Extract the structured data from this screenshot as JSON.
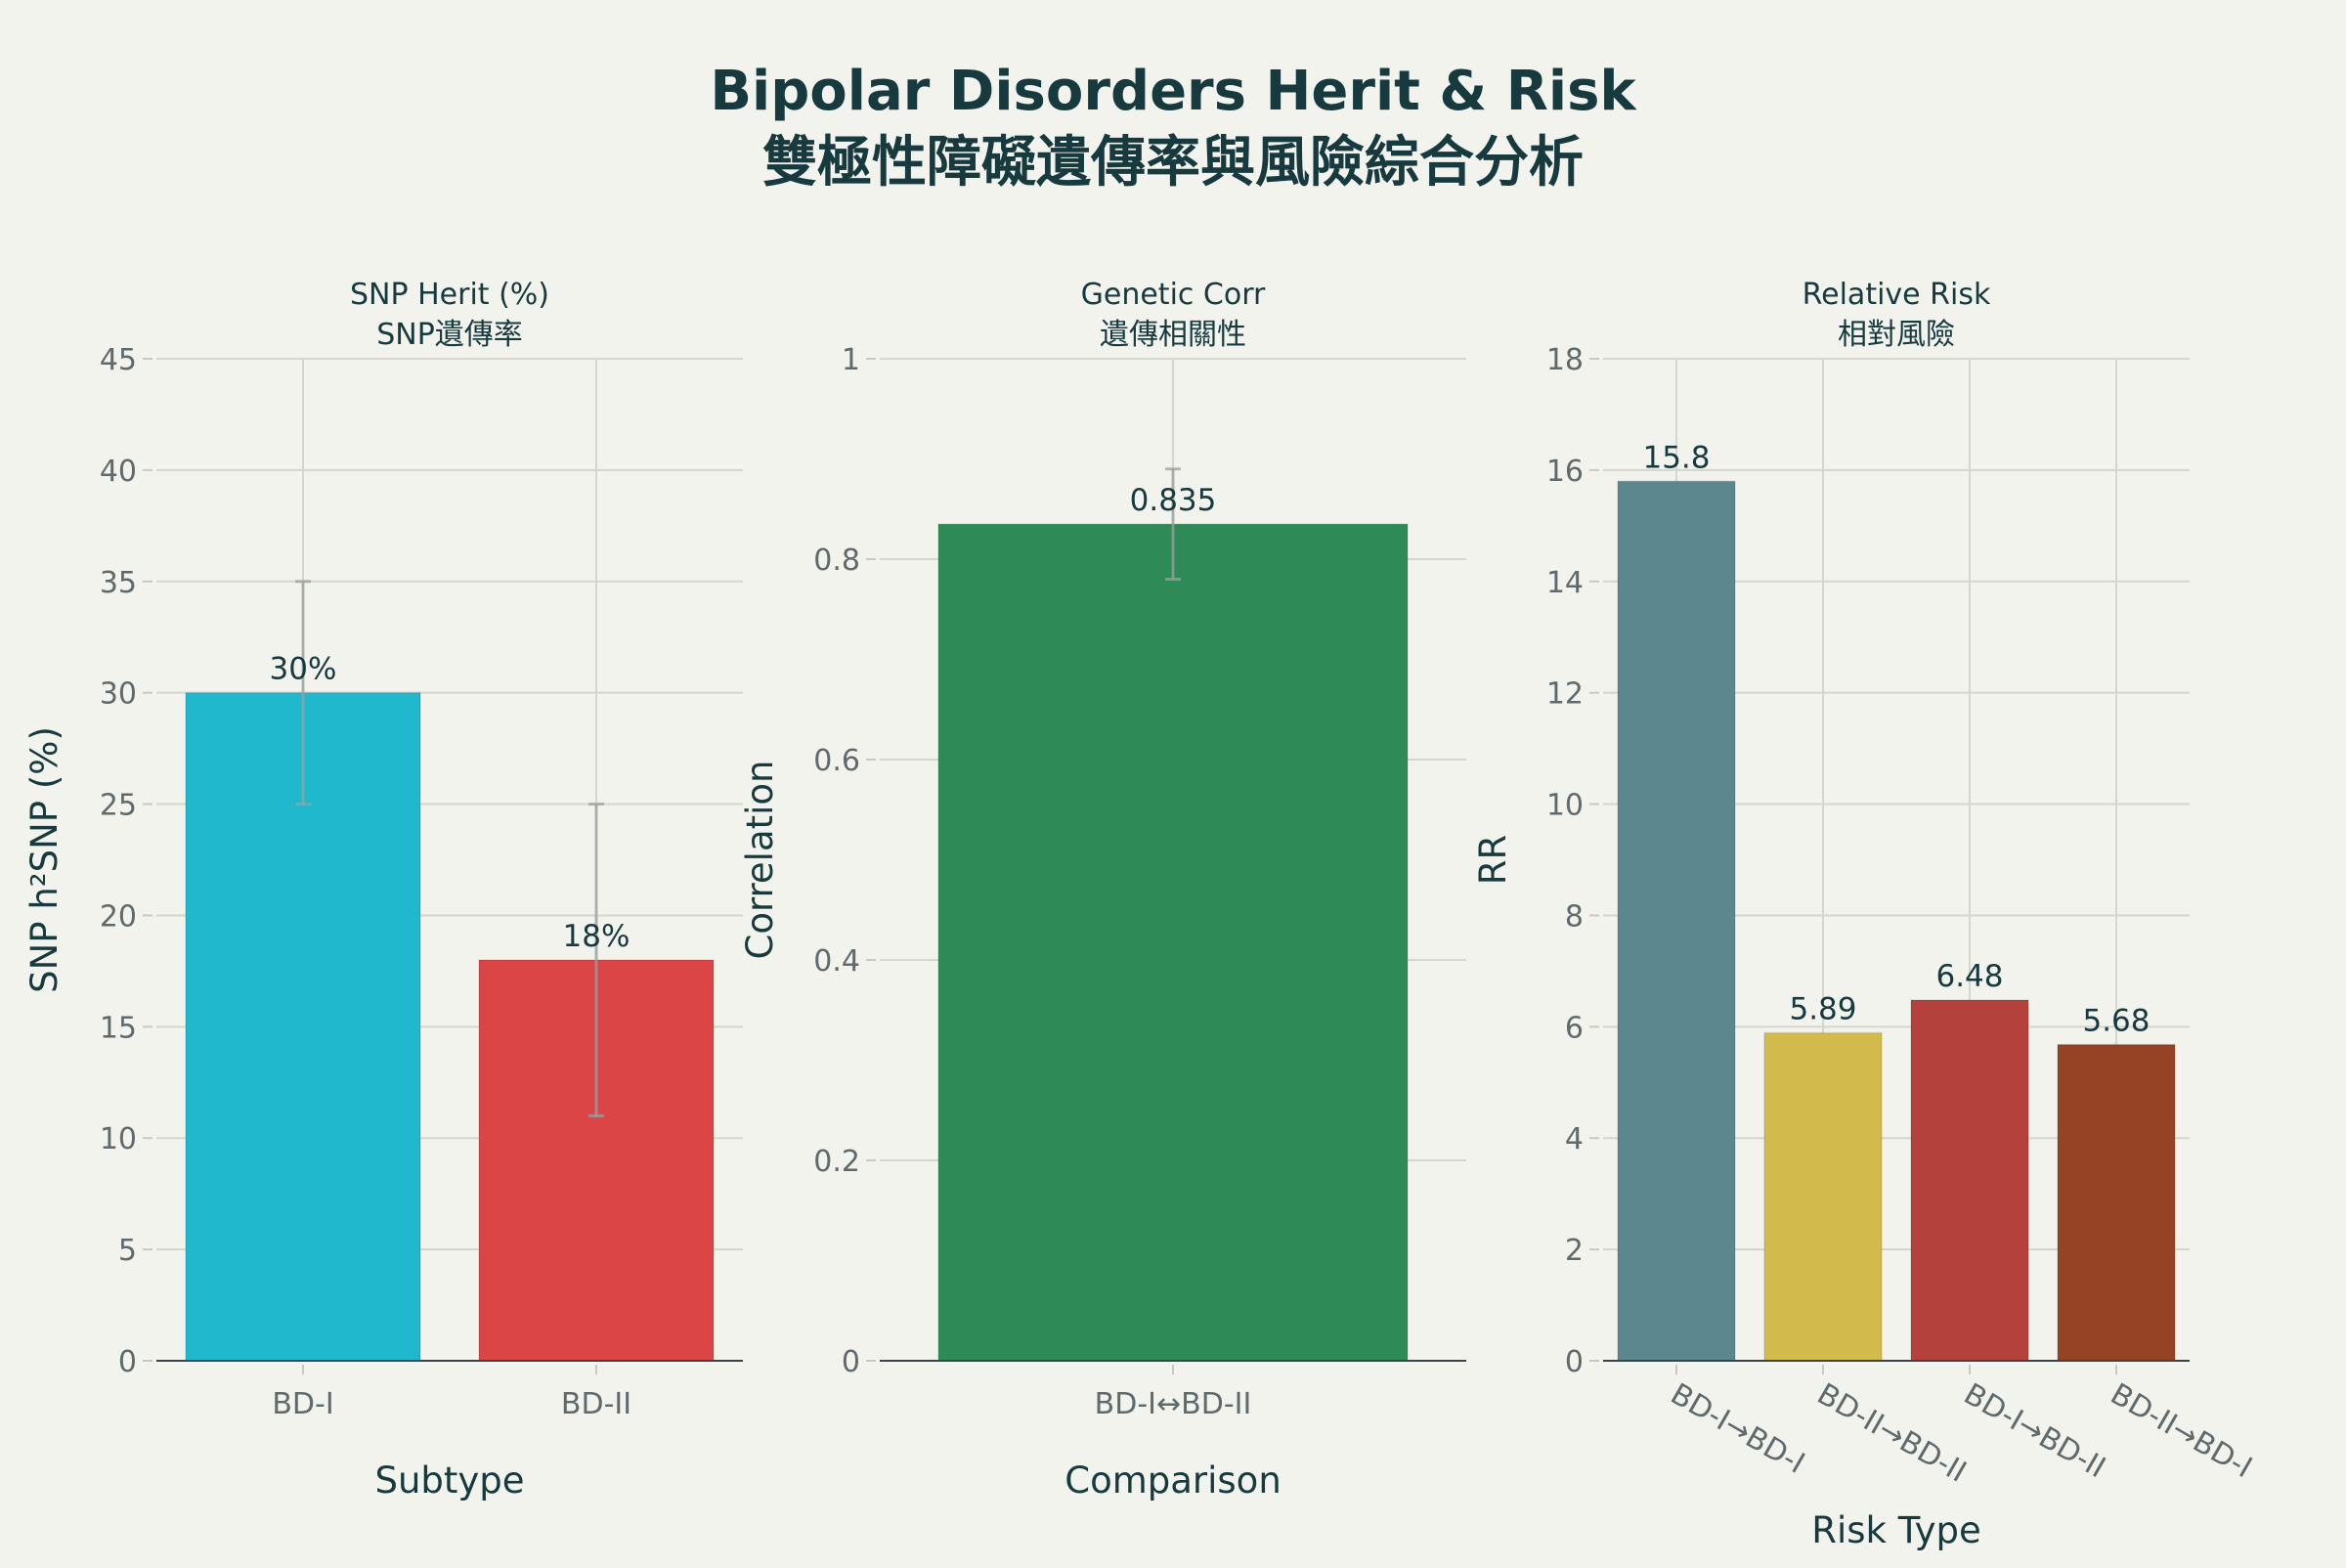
{
  "title": {
    "line1": "Bipolar Disorders Herit & Risk",
    "line2": "雙極性障礙遺傳率與風險綜合分析"
  },
  "chart_data": [
    {
      "type": "bar",
      "title_line1": "SNP Herit (%)",
      "title_line2": "SNP遺傳率",
      "xlabel": "Subtype",
      "ylabel": "SNP h²SNP (%)",
      "categories": [
        "BD-I",
        "BD-II"
      ],
      "values": [
        30,
        18
      ],
      "labels": [
        "30%",
        "18%"
      ],
      "error_low": [
        25,
        11
      ],
      "error_high": [
        35,
        25
      ],
      "colors": [
        "#1fb8cd",
        "#db4545"
      ],
      "ylim": [
        0,
        45
      ],
      "yticks": [
        0,
        5,
        10,
        15,
        20,
        25,
        30,
        35,
        40,
        45
      ],
      "ytick_labels": [
        "0",
        "5",
        "10",
        "15",
        "20",
        "25",
        "30",
        "35",
        "40",
        "45"
      ],
      "xlabel_rotated": false,
      "grid": true
    },
    {
      "type": "bar",
      "title_line1": "Genetic Corr",
      "title_line2": "遺傳相關性",
      "xlabel": "Comparison",
      "ylabel": "Correlation",
      "categories": [
        "BD-I↔BD-II"
      ],
      "values": [
        0.835
      ],
      "labels": [
        "0.835"
      ],
      "error_low": [
        0.78
      ],
      "error_high": [
        0.89
      ],
      "colors": [
        "#2e8b57"
      ],
      "ylim": [
        0,
        1
      ],
      "yticks": [
        0,
        0.2,
        0.4,
        0.6,
        0.8,
        1
      ],
      "ytick_labels": [
        "0",
        "0.2",
        "0.4",
        "0.6",
        "0.8",
        "1"
      ],
      "xlabel_rotated": false,
      "grid": true
    },
    {
      "type": "bar",
      "title_line1": "Relative Risk",
      "title_line2": "相對風險",
      "xlabel": "Risk Type",
      "ylabel": "RR",
      "categories": [
        "BD-I→BD-I",
        "BD-II→BD-II",
        "BD-I→BD-II",
        "BD-II→BD-I"
      ],
      "values": [
        15.8,
        5.89,
        6.48,
        5.68
      ],
      "labels": [
        "15.8",
        "5.89",
        "6.48",
        "5.68"
      ],
      "colors": [
        "#5d878f",
        "#d2ba4c",
        "#b4413c",
        "#944454"
      ],
      "bar_colors_actual": [
        "#5d878f",
        "#d2ba4c",
        "#b4413c",
        "#964325"
      ],
      "ylim": [
        0,
        18
      ],
      "yticks": [
        0,
        2,
        4,
        6,
        8,
        10,
        12,
        14,
        16,
        18
      ],
      "ytick_labels": [
        "0",
        "2",
        "4",
        "6",
        "8",
        "10",
        "12",
        "14",
        "16",
        "18"
      ],
      "xlabel_rotated": true,
      "grid": true
    }
  ]
}
